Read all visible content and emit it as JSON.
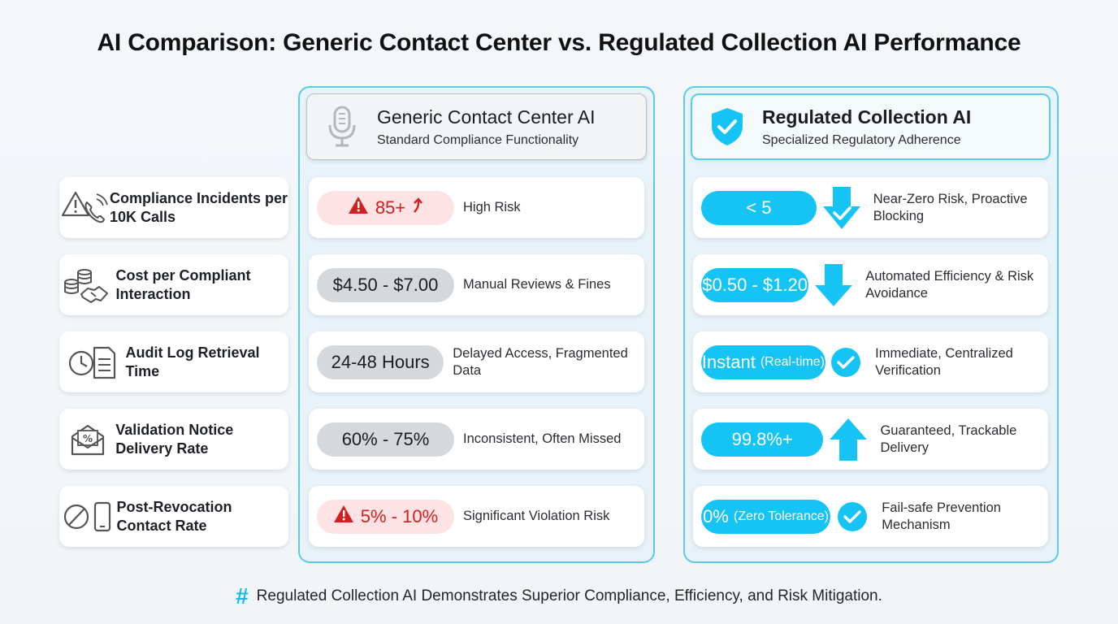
{
  "title": "AI Comparison: Generic Contact Center vs. Regulated Collection AI Performance",
  "colors": {
    "accent": "#16c3f5",
    "panel_border": "#5ccbe8",
    "risk_red": "#d21f1f",
    "risk_red_bg": "#fde3e3",
    "neutral_pill": "#d6d9dc"
  },
  "generic": {
    "title": "Generic Contact Center AI",
    "subtitle": "Standard Compliance Functionality",
    "icon": "microphone-icon"
  },
  "regulated": {
    "title": "Regulated Collection AI",
    "subtitle": "Specialized Regulatory Adherence",
    "icon": "shield-check-icon"
  },
  "rows": [
    {
      "metric": "Compliance Incidents per 10K Calls",
      "metric_icon": "warning-phone-icon",
      "generic_value": "85+",
      "generic_style": "warning",
      "generic_desc": "High Risk",
      "regulated_value": "< 5",
      "regulated_indicator": "down-check-arrow-icon",
      "regulated_desc": "Near-Zero Risk, Proactive Blocking"
    },
    {
      "metric": "Cost per Compliant Interaction",
      "metric_icon": "coins-handshake-icon",
      "generic_value": "$4.50 - $7.00",
      "generic_style": "neutral",
      "generic_desc": "Manual Reviews & Fines",
      "regulated_value": "$0.50 - $1.20",
      "regulated_indicator": "down-arrow-icon",
      "regulated_desc": "Automated Efficiency & Risk Avoidance"
    },
    {
      "metric": "Audit Log Retrieval Time",
      "metric_icon": "clock-document-icon",
      "generic_value": "24-48 Hours",
      "generic_style": "neutral",
      "generic_desc": "Delayed Access, Fragmented Data",
      "regulated_value": "Instant",
      "regulated_value_note": "(Real-time)",
      "regulated_indicator": "check-circle-icon",
      "regulated_desc": "Immediate, Centralized Verification"
    },
    {
      "metric": "Validation Notice Delivery Rate",
      "metric_icon": "envelope-percent-icon",
      "generic_value": "60% - 75%",
      "generic_style": "neutral",
      "generic_desc": "Inconsistent, Often Missed",
      "regulated_value": "99.8%+",
      "regulated_indicator": "up-arrow-icon",
      "regulated_desc": "Guaranteed, Trackable Delivery"
    },
    {
      "metric": "Post-Revocation Contact Rate",
      "metric_icon": "blocked-phone-icon",
      "generic_value": "5% - 10%",
      "generic_style": "warning",
      "generic_desc": "Significant Violation Risk",
      "regulated_value": "0%",
      "regulated_value_note": "(Zero Tolerance)",
      "regulated_indicator": "check-circle-icon",
      "regulated_desc": "Fail-safe Prevention Mechanism"
    }
  ],
  "footer": {
    "icon": "hash-icon",
    "symbol": "#",
    "text": "Regulated Collection AI Demonstrates Superior Compliance, Efficiency, and Risk Mitigation."
  }
}
